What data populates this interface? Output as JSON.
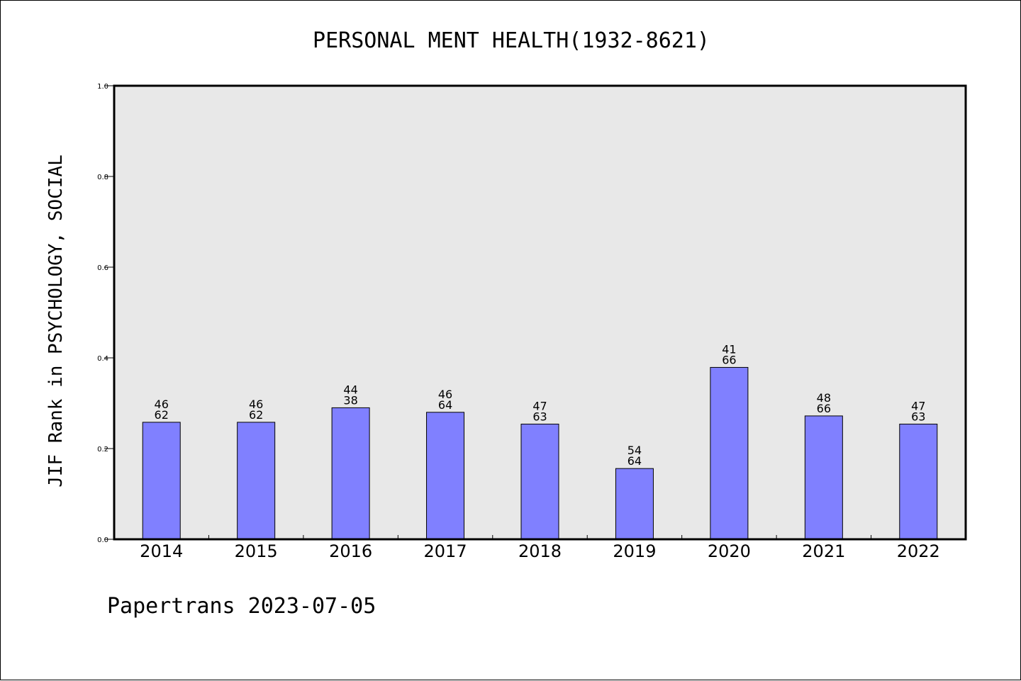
{
  "chart_data": {
    "type": "bar",
    "title": "PERSONAL MENT HEALTH(1932-8621)",
    "ylabel": "JIF Rank in PSYCHOLOGY, SOCIAL",
    "xlabel": "",
    "ylim": [
      0,
      1.0
    ],
    "yticks": [
      "0.0",
      "0.2",
      "0.4",
      "0.6",
      "0.8",
      "1.0"
    ],
    "categories": [
      "2014",
      "2015",
      "2016",
      "2017",
      "2018",
      "2019",
      "2020",
      "2021",
      "2022"
    ],
    "values": [
      0.258,
      0.258,
      0.29,
      0.28,
      0.254,
      0.156,
      0.379,
      0.272,
      0.254
    ],
    "labels_top": [
      "46",
      "46",
      "44",
      "46",
      "47",
      "54",
      "41",
      "48",
      "47"
    ],
    "labels_bottom": [
      "62",
      "62",
      "38",
      "64",
      "63",
      "64",
      "66",
      "66",
      "63"
    ],
    "bar_color": "#8080ff",
    "plot_background": "#e8e8e8",
    "grid": false,
    "footer": "Papertrans 2023-07-05"
  }
}
